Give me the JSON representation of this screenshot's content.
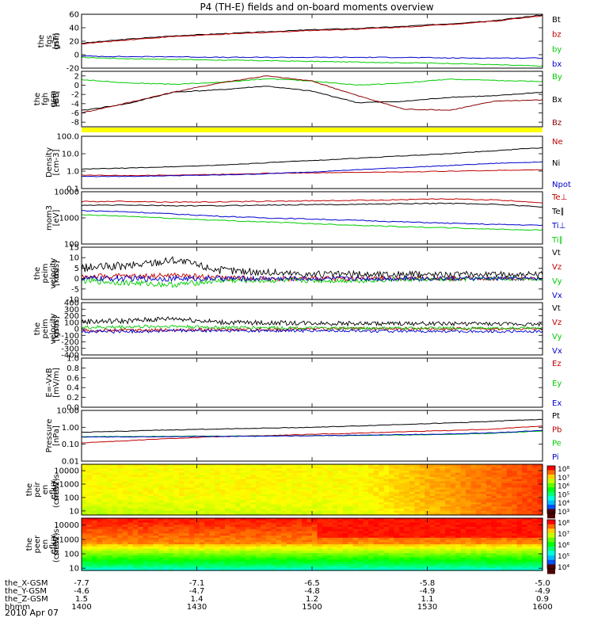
{
  "title": "P4 (TH-E) fields and on-board moments overview",
  "date_label": "2010 Apr 07",
  "colors": {
    "black": "#000000",
    "red": "#c00000",
    "dark_red": "#8b0000",
    "green": "#00cc00",
    "blue": "#0000cc",
    "yellow": "#ffff00"
  },
  "chart_data": [
    {
      "type": "line",
      "ylabel": [
        "the",
        "fgs",
        "gsm",
        "[nT]"
      ],
      "ylim": [
        -20,
        60
      ],
      "log": false,
      "ticks": [
        {
          "v": 60,
          "label": "60"
        },
        {
          "v": 40,
          "label": "40"
        },
        {
          "v": 20,
          "label": "20"
        },
        {
          "v": 0,
          "label": "0"
        },
        {
          "v": -20,
          "label": "-20"
        }
      ],
      "series": [
        {
          "name": "Bt",
          "color": "#000000",
          "values": [
            17,
            23,
            28,
            31,
            34,
            37,
            39,
            42,
            46,
            51,
            59
          ]
        },
        {
          "name": "bz",
          "color": "#c00000",
          "values": [
            16,
            22,
            27,
            30,
            33,
            36,
            38,
            41,
            45,
            50,
            58
          ]
        },
        {
          "name": "by",
          "color": "#00cc00",
          "values": [
            -4,
            -6,
            -7,
            -8,
            -9,
            -10,
            -11,
            -12,
            -13,
            -15,
            -17
          ]
        },
        {
          "name": "bx",
          "color": "#0000cc",
          "values": [
            -2,
            -3,
            -3,
            -4,
            -4,
            -4,
            -4,
            -4,
            -5,
            -5,
            -5
          ]
        }
      ]
    },
    {
      "type": "line",
      "ylabel": [
        "the",
        "fgh",
        "gsm",
        "-BB",
        "[nT]"
      ],
      "ylim": [
        -9,
        3
      ],
      "log": false,
      "ticks": [
        {
          "v": 2,
          "label": "2"
        },
        {
          "v": 0,
          "label": "0"
        },
        {
          "v": -2,
          "label": "-2"
        },
        {
          "v": -4,
          "label": "-4"
        },
        {
          "v": -6,
          "label": "-6"
        },
        {
          "v": -8,
          "label": "-8"
        }
      ],
      "series": [
        {
          "name": "By",
          "color": "#00cc00",
          "values": [
            1.2,
            0.5,
            0.2,
            0.6,
            1.4,
            0.9,
            0.0,
            0.5,
            1.3,
            1.0,
            0.8
          ]
        },
        {
          "name": "Bx",
          "color": "#000000",
          "values": [
            -5.5,
            -4.0,
            -1.5,
            -1.0,
            -0.2,
            -1.3,
            -3.8,
            -3.5,
            -2.6,
            -2.3,
            -1.5
          ]
        },
        {
          "name": "Bz",
          "color": "#8b0000",
          "values": [
            -6.0,
            -3.8,
            -1.5,
            0.5,
            2.0,
            0.9,
            -2.3,
            -5.2,
            -5.4,
            -3.4,
            -3.2
          ]
        }
      ]
    },
    {
      "type": "line",
      "ylabel": [
        "Density",
        "[cm-3]"
      ],
      "ylim": [
        0.1,
        100
      ],
      "log": true,
      "ticks": [
        {
          "v": 100,
          "label": "100.0"
        },
        {
          "v": 10,
          "label": "10.0"
        },
        {
          "v": 1,
          "label": "1.0"
        },
        {
          "v": 0.1,
          "label": "0.1"
        }
      ],
      "series": [
        {
          "name": "Ne",
          "color": "#c00000",
          "values": [
            0.6,
            0.55,
            0.6,
            0.65,
            0.75,
            0.8,
            0.85,
            0.9,
            1.0,
            1.1,
            1.2
          ]
        },
        {
          "name": "Ni",
          "color": "#000000",
          "values": [
            1.3,
            1.5,
            1.8,
            2.2,
            3.0,
            4.0,
            5.5,
            7.5,
            10,
            15,
            22
          ]
        },
        {
          "name": "Npot",
          "color": "#0000cc",
          "values": [
            0.5,
            0.5,
            0.55,
            0.6,
            0.7,
            0.9,
            1.2,
            1.6,
            2.1,
            2.8,
            3.4
          ]
        }
      ]
    },
    {
      "type": "line",
      "ylabel": [
        "mom3",
        "[eV]"
      ],
      "ylim": [
        100,
        10000
      ],
      "log": true,
      "ticks": [
        {
          "v": 10000,
          "label": "10000"
        },
        {
          "v": 1000,
          "label": "1000"
        },
        {
          "v": 100,
          "label": "100"
        }
      ],
      "series": [
        {
          "name": "Te⊥",
          "color": "#c00000",
          "values": [
            4200,
            4300,
            4000,
            4100,
            4300,
            4500,
            4700,
            5000,
            5300,
            4800,
            3800
          ]
        },
        {
          "name": "Te∥",
          "color": "#000000",
          "values": [
            3000,
            3100,
            2900,
            2900,
            3100,
            3200,
            3300,
            3500,
            3600,
            3300,
            2600
          ]
        },
        {
          "name": "Ti⊥",
          "color": "#0000cc",
          "values": [
            1900,
            1700,
            1400,
            1150,
            1000,
            900,
            800,
            700,
            620,
            560,
            520
          ]
        },
        {
          "name": "Ti∥",
          "color": "#00cc00",
          "values": [
            1300,
            1150,
            950,
            800,
            700,
            600,
            520,
            460,
            410,
            370,
            340
          ]
        }
      ]
    },
    {
      "type": "line",
      "ylabel": [
        "the",
        "peim",
        "velocity",
        "dsl",
        "[km/s]"
      ],
      "ylim": [
        -10,
        15
      ],
      "log": false,
      "ticks": [
        {
          "v": 15,
          "label": "15"
        },
        {
          "v": 10,
          "label": "10"
        },
        {
          "v": 5,
          "label": "5"
        },
        {
          "v": 0,
          "label": "0"
        },
        {
          "v": -5,
          "label": "-5"
        },
        {
          "v": -10,
          "label": "-10"
        }
      ],
      "series": [
        {
          "name": "Vt",
          "color": "#000000",
          "values": [
            5,
            6,
            9,
            4,
            3,
            2,
            2,
            2,
            2,
            2,
            2
          ]
        },
        {
          "name": "Vz",
          "color": "#c00000",
          "values": [
            1,
            1,
            1.5,
            0.5,
            0,
            0,
            0,
            0,
            0,
            0,
            0
          ]
        },
        {
          "name": "Vy",
          "color": "#00cc00",
          "values": [
            -1,
            -2,
            -3,
            -1,
            -1,
            -1,
            -1,
            -0.5,
            -0.5,
            0,
            0
          ]
        },
        {
          "name": "Vx",
          "color": "#0000cc",
          "values": [
            0,
            0,
            0,
            0,
            0,
            0,
            0,
            0,
            0,
            0,
            0
          ]
        }
      ]
    },
    {
      "type": "line",
      "ylabel": [
        "the",
        "peim",
        "velocity",
        "gsm",
        "[km/s]"
      ],
      "ylim": [
        -400,
        400
      ],
      "log": false,
      "ticks": [
        {
          "v": 400,
          "label": "400"
        },
        {
          "v": 300,
          "label": "300"
        },
        {
          "v": 200,
          "label": "200"
        },
        {
          "v": 100,
          "label": "100"
        },
        {
          "v": 0,
          "label": "0"
        },
        {
          "v": -100,
          "label": "-100"
        },
        {
          "v": -200,
          "label": "-200"
        },
        {
          "v": -300,
          "label": "-300"
        },
        {
          "v": -400,
          "label": "-400"
        }
      ],
      "series": [
        {
          "name": "Vt",
          "color": "#000000",
          "values": [
            110,
            120,
            160,
            100,
            90,
            90,
            80,
            80,
            80,
            75,
            70
          ]
        },
        {
          "name": "Vz",
          "color": "#c00000",
          "values": [
            -30,
            -20,
            -20,
            -10,
            -10,
            0,
            0,
            0,
            0,
            0,
            0
          ]
        },
        {
          "name": "Vy",
          "color": "#00cc00",
          "values": [
            20,
            30,
            40,
            20,
            20,
            10,
            10,
            10,
            10,
            10,
            10
          ]
        },
        {
          "name": "Vx",
          "color": "#0000cc",
          "values": [
            -40,
            -40,
            -30,
            -30,
            -30,
            -30,
            -30,
            -40,
            -40,
            -40,
            -40
          ]
        }
      ]
    },
    {
      "type": "line",
      "ylabel": [
        "E=-VxB",
        "[mV/m]"
      ],
      "ylim": [
        0,
        1
      ],
      "log": false,
      "ticks": [
        {
          "v": 1.0,
          "label": "1.0"
        },
        {
          "v": 0.8,
          "label": "0.8"
        },
        {
          "v": 0.6,
          "label": "0.6"
        },
        {
          "v": 0.4,
          "label": "0.4"
        },
        {
          "v": 0.2,
          "label": "0.2"
        },
        {
          "v": 0.0,
          "label": "0.0"
        }
      ],
      "series": [
        {
          "name": "Ez",
          "color": "#c00000",
          "values": []
        },
        {
          "name": "Ey",
          "color": "#00cc00",
          "values": []
        },
        {
          "name": "Ex",
          "color": "#0000cc",
          "values": []
        }
      ]
    },
    {
      "type": "line",
      "ylabel": [
        "Pressure",
        "[nPa]"
      ],
      "ylim": [
        0.01,
        10
      ],
      "log": true,
      "ticks": [
        {
          "v": 10,
          "label": "10.00"
        },
        {
          "v": 1,
          "label": "1.00"
        },
        {
          "v": 0.1,
          "label": "0.10"
        },
        {
          "v": 0.01,
          "label": "0.01"
        }
      ],
      "series": [
        {
          "name": "Pt",
          "color": "#000000",
          "values": [
            0.5,
            0.6,
            0.7,
            0.8,
            0.9,
            1.0,
            1.2,
            1.5,
            1.8,
            2.3,
            3.0
          ]
        },
        {
          "name": "Pb",
          "color": "#c00000",
          "values": [
            0.12,
            0.16,
            0.22,
            0.28,
            0.32,
            0.38,
            0.45,
            0.55,
            0.65,
            0.8,
            1.2
          ]
        },
        {
          "name": "Pe",
          "color": "#00cc00",
          "values": [
            0.28,
            0.29,
            0.3,
            0.3,
            0.31,
            0.32,
            0.33,
            0.35,
            0.38,
            0.45,
            0.6
          ]
        },
        {
          "name": "Pi",
          "color": "#0000cc",
          "values": [
            0.27,
            0.27,
            0.28,
            0.29,
            0.3,
            0.32,
            0.34,
            0.37,
            0.4,
            0.48,
            0.65
          ]
        }
      ]
    },
    {
      "type": "heatmap",
      "ylabel": [
        "the",
        "peir",
        "en",
        "eflux",
        "eV",
        "(cm^2-s-",
        "sr-eV)"
      ],
      "ylim": [
        5,
        30000
      ],
      "log": true,
      "ticks": [
        {
          "v": 10000,
          "label": "10000"
        },
        {
          "v": 1000,
          "label": "1000"
        },
        {
          "v": 100,
          "label": "100"
        },
        {
          "v": 10,
          "label": "10"
        }
      ],
      "colorbar": {
        "labels": [
          "10⁸",
          "10⁷",
          "10⁶",
          "10⁵",
          "10⁴",
          "10³"
        ],
        "range": [
          3,
          8
        ]
      }
    },
    {
      "type": "heatmap",
      "ylabel": [
        "the",
        "peer",
        "en",
        "eflux",
        "eV",
        "(cm^2-s-",
        "sr-eV)"
      ],
      "ylim": [
        7,
        30000
      ],
      "log": true,
      "ticks": [
        {
          "v": 10000,
          "label": "10000"
        },
        {
          "v": 1000,
          "label": "1000"
        },
        {
          "v": 100,
          "label": "100"
        },
        {
          "v": 10,
          "label": "10"
        }
      ],
      "colorbar": {
        "labels": [
          "10⁸",
          "10⁷",
          "10⁶",
          "10⁵",
          "10⁴"
        ],
        "range": [
          4,
          8
        ]
      }
    }
  ],
  "x_axis": {
    "row_labels": [
      "the_X-GSM",
      "the_Y-GSM",
      "the_Z-GSM",
      "hhmm"
    ],
    "columns": [
      [
        "-7.7",
        "-4.6",
        "1.5",
        "1400"
      ],
      [
        "-7.1",
        "-4.7",
        "1.4",
        "1430"
      ],
      [
        "-6.5",
        "-4.8",
        "1.2",
        "1500"
      ],
      [
        "-5.8",
        "-4.9",
        "1.1",
        "1530"
      ],
      [
        "-5.0",
        "-4.9",
        "0.9",
        "1600"
      ]
    ]
  }
}
